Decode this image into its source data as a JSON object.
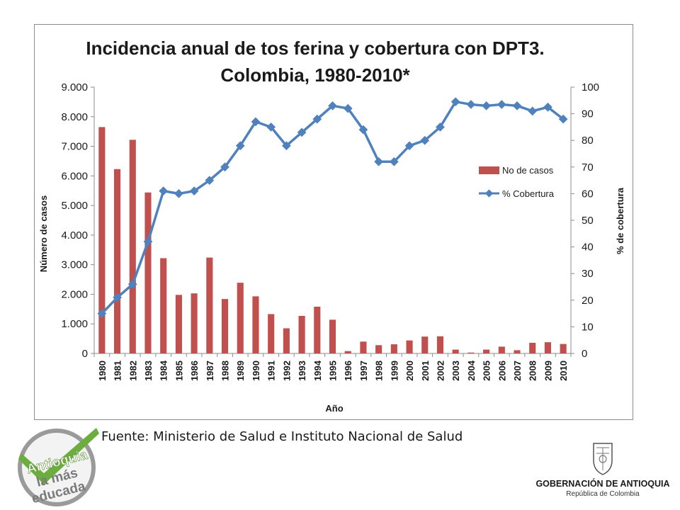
{
  "source": "Fuente: Ministerio de Salud e Instituto Nacional de Salud",
  "logos": {
    "left": {
      "line1": "Antioquia",
      "line2": "la más",
      "line3": "educada"
    },
    "right": {
      "line1": "GOBERNACIÓN DE ANTIOQUIA",
      "line2": "República de Colombia"
    }
  },
  "chart_data": {
    "type": "bar+line",
    "title_lines": [
      "Incidencia anual de tos ferina y cobertura con DPT3.",
      "Colombia, 1980-2010*"
    ],
    "xlabel": "Año",
    "ylabel_left": "Número de casos",
    "ylabel_right": "% de cobertura",
    "categories": [
      "1980",
      "1981",
      "1982",
      "1983",
      "1984",
      "1985",
      "1986",
      "1987",
      "1988",
      "1989",
      "1990",
      "1991",
      "1992",
      "1993",
      "1994",
      "1995",
      "1996",
      "1997",
      "1998",
      "1999",
      "2000",
      "2001",
      "2002",
      "2003",
      "2004",
      "2005",
      "2006",
      "2007",
      "2008",
      "2009",
      "2010"
    ],
    "y_left": {
      "min": 0,
      "max": 9000,
      "step": 1000,
      "tick_labels": [
        "0",
        "1.000",
        "2.000",
        "3.000",
        "4.000",
        "5.000",
        "6.000",
        "7.000",
        "8.000",
        "9.000"
      ]
    },
    "y_right": {
      "min": 0,
      "max": 100,
      "step": 10,
      "tick_labels": [
        "0",
        "10",
        "20",
        "30",
        "40",
        "50",
        "60",
        "70",
        "80",
        "90",
        "100"
      ]
    },
    "series": [
      {
        "name": "No de casos",
        "kind": "bar",
        "axis": "left",
        "color": "#c0504d",
        "values": [
          7650,
          6230,
          7220,
          5440,
          3220,
          1980,
          2030,
          3240,
          1840,
          2390,
          1930,
          1330,
          850,
          1270,
          1580,
          1140,
          80,
          400,
          280,
          310,
          440,
          570,
          580,
          130,
          30,
          130,
          230,
          110,
          360,
          380,
          320
        ]
      },
      {
        "name": "% Cobertura",
        "kind": "line",
        "axis": "right",
        "color": "#4f81bd",
        "values": [
          15,
          21,
          26,
          42,
          61,
          60,
          61,
          65,
          70,
          78,
          87,
          85,
          78,
          83,
          88,
          93,
          92,
          84,
          72,
          72,
          78,
          80,
          85,
          94.5,
          93.5,
          93,
          93.5,
          93,
          91,
          92.5,
          88
        ]
      }
    ],
    "legend_position": "right-middle",
    "grid": false
  }
}
